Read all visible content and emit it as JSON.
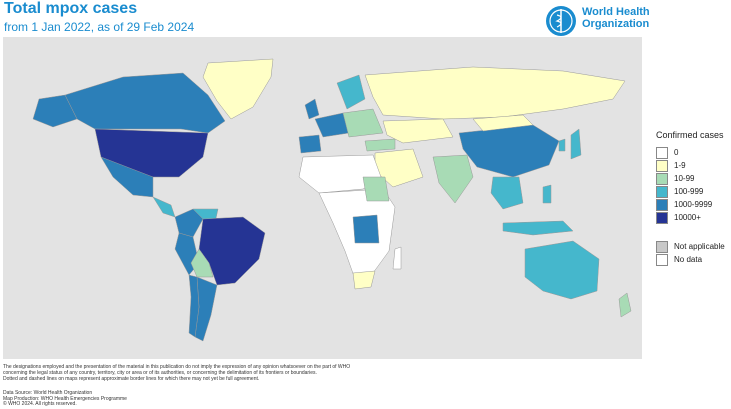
{
  "title": "Total mpox cases",
  "subtitle": "from 1 Jan 2022, as of 29 Feb 2024",
  "logo": {
    "line1": "World Health",
    "line2": "Organization"
  },
  "legend": {
    "title": "Confirmed cases",
    "items": [
      {
        "label": "0",
        "color": "#ffffff"
      },
      {
        "label": "1-9",
        "color": "#ffffc6"
      },
      {
        "label": "10-99",
        "color": "#a8dbb5"
      },
      {
        "label": "100-999",
        "color": "#45b7cc"
      },
      {
        "label": "1000-9999",
        "color": "#2c7fb8"
      },
      {
        "label": "10000+",
        "color": "#253494"
      }
    ],
    "extra": [
      {
        "label": "Not applicable",
        "color": "#c8c8c8"
      },
      {
        "label": "No data",
        "color": "#ffffff"
      }
    ]
  },
  "map_colors": {
    "background": "#e3e3e3",
    "border": "#999999"
  },
  "disclaimer": [
    "The designations employed and the presentation of the material in this publication do not imply the expression of any opinion whatsoever on the part of WHO",
    "concerning the legal status of any country, territory, city or area or of its authorities, or concerning the delimitation of its frontiers or boundaries.",
    "Dotted and dashed lines on maps represent approximate border lines for which there may not yet be full agreement."
  ],
  "footer": [
    "Data Source: World Health Organization",
    "Map Production: WHO Health Emergencies Programme",
    "© WHO 2024. All rights reserved."
  ]
}
